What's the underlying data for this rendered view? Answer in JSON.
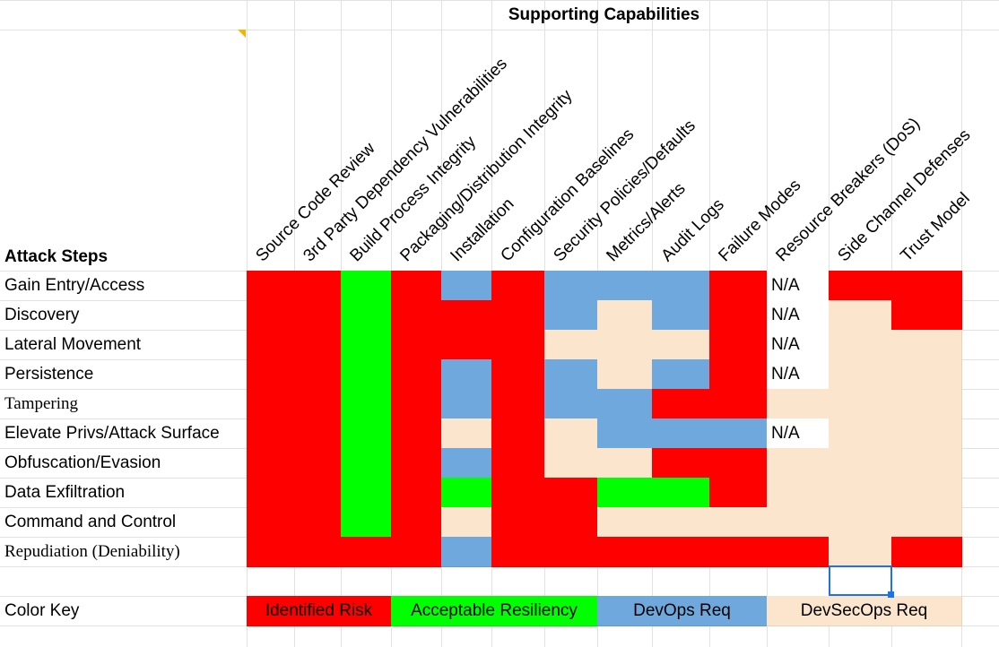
{
  "title": "Supporting Capabilities",
  "row_header_title": "Attack Steps",
  "columns": [
    "Source Code Review",
    "3rd Party Dependency Vulnerabilities",
    "Build Process Integrity",
    "Packaging/Distribution Integrity",
    "Installation",
    "Configuration Baselines",
    "Security Policies/Defaults",
    "Metrics/Alerts",
    "Audit Logs",
    "Failure Modes",
    "Resource Breakers (DoS)",
    "Side Channel Defenses",
    "Trust Model"
  ],
  "colors": {
    "R": "#ff0000",
    "G": "#00ff00",
    "B": "#6fa8dc",
    "P": "#fce5cd",
    "W": "#ffffff"
  },
  "rows": [
    {
      "label": "Gain Entry/Access",
      "cells": [
        "R",
        "R",
        "G",
        "R",
        "B",
        "R",
        "B",
        "B",
        "B",
        "R",
        "N/A",
        "R",
        "R"
      ]
    },
    {
      "label": "Discovery",
      "cells": [
        "R",
        "R",
        "G",
        "R",
        "R",
        "R",
        "B",
        "P",
        "B",
        "R",
        "N/A",
        "P",
        "R"
      ]
    },
    {
      "label": "Lateral Movement",
      "cells": [
        "R",
        "R",
        "G",
        "R",
        "R",
        "R",
        "P",
        "P",
        "P",
        "R",
        "N/A",
        "P",
        "P"
      ]
    },
    {
      "label": "Persistence",
      "cells": [
        "R",
        "R",
        "G",
        "R",
        "B",
        "R",
        "B",
        "P",
        "B",
        "R",
        "N/A",
        "P",
        "P"
      ]
    },
    {
      "label": "Tampering",
      "serif": true,
      "cells": [
        "R",
        "R",
        "G",
        "R",
        "B",
        "R",
        "B",
        "B",
        "R",
        "R",
        "P",
        "P",
        "P"
      ]
    },
    {
      "label": "Elevate Privs/Attack Surface",
      "cells": [
        "R",
        "R",
        "G",
        "R",
        "P",
        "R",
        "P",
        "B",
        "B",
        "B",
        "N/A",
        "P",
        "P"
      ]
    },
    {
      "label": "Obfuscation/Evasion",
      "cells": [
        "R",
        "R",
        "G",
        "R",
        "B",
        "R",
        "P",
        "P",
        "R",
        "R",
        "P",
        "P",
        "P"
      ]
    },
    {
      "label": "Data Exfiltration",
      "cells": [
        "R",
        "R",
        "G",
        "R",
        "G",
        "R",
        "R",
        "G",
        "G",
        "R",
        "P",
        "P",
        "P"
      ]
    },
    {
      "label": "Command and Control",
      "cells": [
        "R",
        "R",
        "G",
        "R",
        "P",
        "R",
        "R",
        "P",
        "P",
        "P",
        "P",
        "P",
        "P"
      ]
    },
    {
      "label": "Repudiation (Deniability)",
      "serif": true,
      "cells": [
        "R",
        "R",
        "R",
        "R",
        "B",
        "R",
        "R",
        "R",
        "R",
        "R",
        "R",
        "P",
        "R"
      ]
    }
  ],
  "color_key": {
    "label": "Color Key",
    "items": [
      {
        "label": "Identified Risk",
        "color": "R"
      },
      {
        "label": "Acceptable Resiliency",
        "color": "G"
      },
      {
        "label": "DevOps Req",
        "color": "B"
      },
      {
        "label": "DevSecOps Req",
        "color": "P"
      }
    ]
  }
}
